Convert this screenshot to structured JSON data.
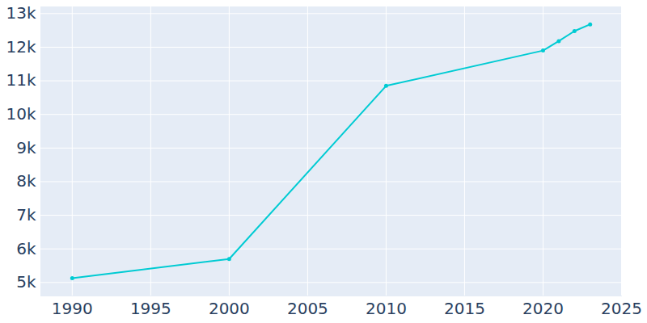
{
  "chart_data": {
    "type": "line",
    "x": [
      1990,
      2000,
      2010,
      2020,
      2021,
      2022,
      2023
    ],
    "values": [
      5130,
      5700,
      10850,
      11900,
      12180,
      12480,
      12680
    ],
    "color": "#00cbd3",
    "marker": "circle",
    "xlim": [
      1988,
      2025
    ],
    "xticks": [
      1990,
      1995,
      2000,
      2005,
      2010,
      2015,
      2020,
      2025
    ],
    "ylim": [
      4600,
      13200
    ],
    "yticks": [
      {
        "value": 5000,
        "label": "5k"
      },
      {
        "value": 6000,
        "label": "6k"
      },
      {
        "value": 7000,
        "label": "7k"
      },
      {
        "value": 8000,
        "label": "8k"
      },
      {
        "value": 9000,
        "label": "9k"
      },
      {
        "value": 10000,
        "label": "10k"
      },
      {
        "value": 11000,
        "label": "11k"
      },
      {
        "value": 12000,
        "label": "12k"
      },
      {
        "value": 13000,
        "label": "13k"
      }
    ],
    "grid": true
  }
}
